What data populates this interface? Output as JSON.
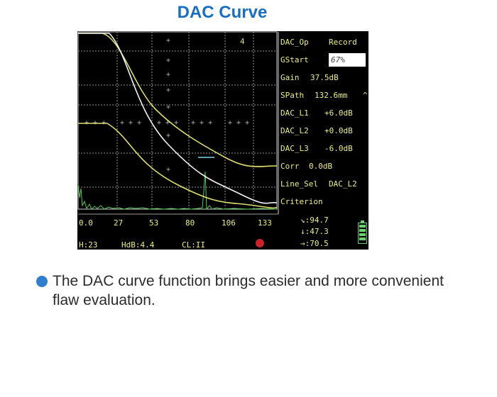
{
  "heading": "DAC Curve",
  "screen": {
    "gate_number": "4",
    "menu": [
      {
        "label": "DAC_Op",
        "value": "Record"
      },
      {
        "label": "GStart",
        "value": "67%",
        "selected": true
      },
      {
        "label": "Gain",
        "value": "37.5dB"
      },
      {
        "label": "SPath",
        "value": "132.6mm",
        "suffix": "^"
      },
      {
        "label": "DAC_L1",
        "value": "+6.0dB"
      },
      {
        "label": "DAC_L2",
        "value": "+0.0dB"
      },
      {
        "label": "DAC_L3",
        "value": "-6.0dB"
      },
      {
        "label": "Corr",
        "value": "0.0dB"
      },
      {
        "label": "Line_Sel",
        "value": "DAC_L2"
      },
      {
        "label": "Criterion",
        "value": ""
      }
    ],
    "x_axis_labels": [
      "0.0",
      "27",
      "53",
      "80",
      "106",
      "133"
    ],
    "status": {
      "h": "H:23",
      "hdb": "HdB:4.4",
      "cl": "CL:II"
    },
    "readouts": [
      {
        "icon": "↘",
        "value": ":94.7"
      },
      {
        "icon": "↓",
        "value": ":47.3"
      },
      {
        "icon": "→",
        "value": ":70.5"
      }
    ],
    "colors": {
      "curve_yellow": "#dcdc6e",
      "curve_white": "#f2f2f2",
      "echo_green": "#58c858",
      "gate_cyan": "#7fd4e6",
      "record_red": "#c8242a"
    }
  },
  "description": "The DAC curve function brings easier and more convenient flaw evaluation."
}
